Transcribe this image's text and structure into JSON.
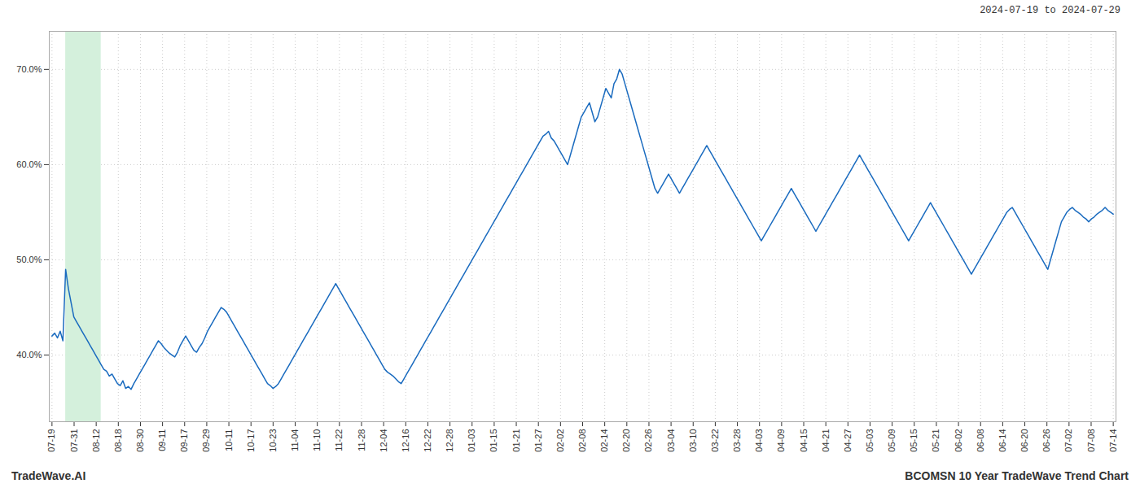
{
  "chart_data": {
    "type": "line",
    "title": "2024-07-19 to 2024-07-29",
    "footer": [
      "TradeWave.AI",
      "BCOMSN 10 Year TradeWave Trend Chart"
    ],
    "color": "#1a6bbf",
    "grid": true,
    "highlight": {
      "start": 5,
      "end": 18,
      "color": "#d4f0dc"
    },
    "xlim": [
      -1,
      390
    ],
    "xticks": [
      {
        "value": 0,
        "label": "07-19"
      },
      {
        "value": 8.104167,
        "label": "07-31"
      },
      {
        "value": 16.208333,
        "label": "08-12"
      },
      {
        "value": 24.3125,
        "label": "08-18"
      },
      {
        "value": 32.416667,
        "label": "08-30"
      },
      {
        "value": 40.520833,
        "label": "09-11"
      },
      {
        "value": 48.625,
        "label": "09-17"
      },
      {
        "value": 56.729167,
        "label": "09-29"
      },
      {
        "value": 64.833333,
        "label": "10-11"
      },
      {
        "value": 72.9375,
        "label": "10-17"
      },
      {
        "value": 81.041667,
        "label": "10-23"
      },
      {
        "value": 89.145833,
        "label": "11-04"
      },
      {
        "value": 97.25,
        "label": "11-10"
      },
      {
        "value": 105.354167,
        "label": "11-22"
      },
      {
        "value": 113.458333,
        "label": "11-28"
      },
      {
        "value": 121.5625,
        "label": "12-04"
      },
      {
        "value": 129.666667,
        "label": "12-16"
      },
      {
        "value": 137.770833,
        "label": "12-22"
      },
      {
        "value": 145.875,
        "label": "12-28"
      },
      {
        "value": 153.979167,
        "label": "01-03"
      },
      {
        "value": 162.083333,
        "label": "01-15"
      },
      {
        "value": 170.1875,
        "label": "01-21"
      },
      {
        "value": 178.291667,
        "label": "01-27"
      },
      {
        "value": 186.395833,
        "label": "02-02"
      },
      {
        "value": 194.5,
        "label": "02-08"
      },
      {
        "value": 202.604167,
        "label": "02-14"
      },
      {
        "value": 210.708333,
        "label": "02-20"
      },
      {
        "value": 218.8125,
        "label": "02-26"
      },
      {
        "value": 226.916667,
        "label": "03-04"
      },
      {
        "value": 235.020833,
        "label": "03-10"
      },
      {
        "value": 243.125,
        "label": "03-22"
      },
      {
        "value": 251.229167,
        "label": "03-28"
      },
      {
        "value": 259.333333,
        "label": "04-03"
      },
      {
        "value": 267.4375,
        "label": "04-09"
      },
      {
        "value": 275.541667,
        "label": "04-15"
      },
      {
        "value": 283.645833,
        "label": "04-21"
      },
      {
        "value": 291.75,
        "label": "04-27"
      },
      {
        "value": 299.854167,
        "label": "05-03"
      },
      {
        "value": 307.958333,
        "label": "05-09"
      },
      {
        "value": 316.0625,
        "label": "05-15"
      },
      {
        "value": 324.166667,
        "label": "05-21"
      },
      {
        "value": 332.270833,
        "label": "06-02"
      },
      {
        "value": 340.375,
        "label": "06-08"
      },
      {
        "value": 348.479167,
        "label": "06-14"
      },
      {
        "value": 356.583333,
        "label": "06-20"
      },
      {
        "value": 364.6875,
        "label": "06-26"
      },
      {
        "value": 372.791667,
        "label": "07-02"
      },
      {
        "value": 380.895833,
        "label": "07-08"
      },
      {
        "value": 389,
        "label": "07-14"
      }
    ],
    "ylim": [
      33,
      74
    ],
    "yticks": [
      {
        "value": 40.0,
        "label": "40.0%"
      },
      {
        "value": 50.0,
        "label": "50.0%"
      },
      {
        "value": 60.0,
        "label": "60.0%"
      },
      {
        "value": 70.0,
        "label": "70.0%"
      }
    ],
    "x": [
      0,
      1,
      2,
      3,
      4,
      5,
      6,
      7,
      8,
      9,
      10,
      11,
      12,
      13,
      14,
      15,
      16,
      17,
      18,
      19,
      20,
      21,
      22,
      23,
      24,
      25,
      26,
      27,
      28,
      29,
      30,
      31,
      32,
      33,
      34,
      35,
      36,
      37,
      38,
      39,
      40,
      41,
      42,
      43,
      44,
      45,
      46,
      47,
      48,
      49,
      50,
      51,
      52,
      53,
      54,
      55,
      56,
      57,
      58,
      59,
      60,
      61,
      62,
      63,
      64,
      65,
      66,
      67,
      68,
      69,
      70,
      71,
      72,
      73,
      74,
      75,
      76,
      77,
      78,
      79,
      80,
      81,
      82,
      83,
      84,
      85,
      86,
      87,
      88,
      89,
      90,
      91,
      92,
      93,
      94,
      95,
      96,
      97,
      98,
      99,
      100,
      101,
      102,
      103,
      104,
      105,
      106,
      107,
      108,
      109,
      110,
      111,
      112,
      113,
      114,
      115,
      116,
      117,
      118,
      119,
      120,
      121,
      122,
      123,
      124,
      125,
      126,
      127,
      128,
      129,
      130,
      131,
      132,
      133,
      134,
      135,
      136,
      137,
      138,
      139,
      140,
      141,
      142,
      143,
      144,
      145,
      146,
      147,
      148,
      149,
      150,
      151,
      152,
      153,
      154,
      155,
      156,
      157,
      158,
      159,
      160,
      161,
      162,
      163,
      164,
      165,
      166,
      167,
      168,
      169,
      170,
      171,
      172,
      173,
      174,
      175,
      176,
      177,
      178,
      179,
      180,
      181,
      182,
      183,
      184,
      185,
      186,
      187,
      188,
      189,
      190,
      191,
      192,
      193,
      194,
      195,
      196,
      197,
      198,
      199,
      200,
      201,
      202,
      203,
      204,
      205,
      206,
      207,
      208,
      209,
      210,
      211,
      212,
      213,
      214,
      215,
      216,
      217,
      218,
      219,
      220,
      221,
      222,
      223,
      224,
      225,
      226,
      227,
      228,
      229,
      230,
      231,
      232,
      233,
      234,
      235,
      236,
      237,
      238,
      239,
      240,
      241,
      242,
      243,
      244,
      245,
      246,
      247,
      248,
      249,
      250,
      251,
      252,
      253,
      254,
      255,
      256,
      257,
      258,
      259,
      260,
      261,
      262,
      263,
      264,
      265,
      266,
      267,
      268,
      269,
      270,
      271,
      272,
      273,
      274,
      275,
      276,
      277,
      278,
      279,
      280,
      281,
      282,
      283,
      284,
      285,
      286,
      287,
      288,
      289,
      290,
      291,
      292,
      293,
      294,
      295,
      296,
      297,
      298,
      299,
      300,
      301,
      302,
      303,
      304,
      305,
      306,
      307,
      308,
      309,
      310,
      311,
      312,
      313,
      314,
      315,
      316,
      317,
      318,
      319,
      320,
      321,
      322,
      323,
      324,
      325,
      326,
      327,
      328,
      329,
      330,
      331,
      332,
      333,
      334,
      335,
      336,
      337,
      338,
      339,
      340,
      341,
      342,
      343,
      344,
      345,
      346,
      347,
      348,
      349,
      350,
      351,
      352,
      353,
      354,
      355,
      356,
      357,
      358,
      359,
      360,
      361,
      362,
      363,
      364,
      365,
      366,
      367,
      368,
      369,
      370,
      371,
      372,
      373,
      374,
      375,
      376,
      377,
      378,
      379,
      380,
      381,
      382,
      383,
      384,
      385,
      386,
      387,
      388,
      389
    ],
    "values": [
      42.0,
      42.3,
      41.8,
      42.5,
      41.5,
      49.0,
      47.0,
      45.5,
      44.0,
      43.5,
      43.0,
      42.5,
      42.0,
      41.5,
      41.0,
      40.5,
      40.0,
      39.5,
      39.0,
      38.5,
      38.3,
      37.8,
      38.0,
      37.5,
      37.0,
      36.8,
      37.3,
      36.5,
      36.7,
      36.4,
      37.0,
      37.5,
      38.0,
      38.5,
      39.0,
      39.5,
      40.0,
      40.5,
      41.0,
      41.5,
      41.2,
      40.8,
      40.5,
      40.2,
      40.0,
      39.8,
      40.3,
      41.0,
      41.5,
      42.0,
      41.5,
      41.0,
      40.5,
      40.3,
      40.8,
      41.2,
      41.8,
      42.5,
      43.0,
      43.5,
      44.0,
      44.5,
      45.0,
      44.8,
      44.5,
      44.0,
      43.5,
      43.0,
      42.5,
      42.0,
      41.5,
      41.0,
      40.5,
      40.0,
      39.5,
      39.0,
      38.5,
      38.0,
      37.5,
      37.0,
      36.8,
      36.5,
      36.7,
      37.0,
      37.5,
      38.0,
      38.5,
      39.0,
      39.5,
      40.0,
      40.5,
      41.0,
      41.5,
      42.0,
      42.5,
      43.0,
      43.5,
      44.0,
      44.5,
      45.0,
      45.5,
      46.0,
      46.5,
      47.0,
      47.5,
      47.0,
      46.5,
      46.0,
      45.5,
      45.0,
      44.5,
      44.0,
      43.5,
      43.0,
      42.5,
      42.0,
      41.5,
      41.0,
      40.5,
      40.0,
      39.5,
      39.0,
      38.5,
      38.2,
      38.0,
      37.8,
      37.5,
      37.2,
      37.0,
      37.5,
      38.0,
      38.5,
      39.0,
      39.5,
      40.0,
      40.5,
      41.0,
      41.5,
      42.0,
      42.5,
      43.0,
      43.5,
      44.0,
      44.5,
      45.0,
      45.5,
      46.0,
      46.5,
      47.0,
      47.5,
      48.0,
      48.5,
      49.0,
      49.5,
      50.0,
      50.5,
      51.0,
      51.5,
      52.0,
      52.5,
      53.0,
      53.5,
      54.0,
      54.5,
      55.0,
      55.5,
      56.0,
      56.5,
      57.0,
      57.5,
      58.0,
      58.5,
      59.0,
      59.5,
      60.0,
      60.5,
      61.0,
      61.5,
      62.0,
      62.5,
      63.0,
      63.2,
      63.5,
      62.8,
      62.5,
      62.0,
      61.5,
      61.0,
      60.5,
      60.0,
      61.0,
      62.0,
      63.0,
      64.0,
      65.0,
      65.5,
      66.0,
      66.5,
      65.5,
      64.5,
      65.0,
      66.0,
      67.0,
      68.0,
      67.5,
      67.0,
      68.5,
      69.0,
      70.0,
      69.5,
      68.5,
      67.5,
      66.5,
      65.5,
      64.5,
      63.5,
      62.5,
      61.5,
      60.5,
      59.5,
      58.5,
      57.5,
      57.0,
      57.5,
      58.0,
      58.5,
      59.0,
      58.5,
      58.0,
      57.5,
      57.0,
      57.5,
      58.0,
      58.5,
      59.0,
      59.5,
      60.0,
      60.5,
      61.0,
      61.5,
      62.0,
      61.5,
      61.0,
      60.5,
      60.0,
      59.5,
      59.0,
      58.5,
      58.0,
      57.5,
      57.0,
      56.5,
      56.0,
      55.5,
      55.0,
      54.5,
      54.0,
      53.5,
      53.0,
      52.5,
      52.0,
      52.5,
      53.0,
      53.5,
      54.0,
      54.5,
      55.0,
      55.5,
      56.0,
      56.5,
      57.0,
      57.5,
      57.0,
      56.5,
      56.0,
      55.5,
      55.0,
      54.5,
      54.0,
      53.5,
      53.0,
      53.5,
      54.0,
      54.5,
      55.0,
      55.5,
      56.0,
      56.5,
      57.0,
      57.5,
      58.0,
      58.5,
      59.0,
      59.5,
      60.0,
      60.5,
      61.0,
      60.5,
      60.0,
      59.5,
      59.0,
      58.5,
      58.0,
      57.5,
      57.0,
      56.5,
      56.0,
      55.5,
      55.0,
      54.5,
      54.0,
      53.5,
      53.0,
      52.5,
      52.0,
      52.5,
      53.0,
      53.5,
      54.0,
      54.5,
      55.0,
      55.5,
      56.0,
      55.5,
      55.0,
      54.5,
      54.0,
      53.5,
      53.0,
      52.5,
      52.0,
      51.5,
      51.0,
      50.5,
      50.0,
      49.5,
      49.0,
      48.5,
      49.0,
      49.5,
      50.0,
      50.5,
      51.0,
      51.5,
      52.0,
      52.5,
      53.0,
      53.5,
      54.0,
      54.5,
      55.0,
      55.3,
      55.5,
      55.0,
      54.5,
      54.0,
      53.5,
      53.0,
      52.5,
      52.0,
      51.5,
      51.0,
      50.5,
      50.0,
      49.5,
      49.0,
      50.0,
      51.0,
      52.0,
      53.0,
      54.0,
      54.5,
      55.0,
      55.3,
      55.5,
      55.2,
      55.0,
      54.8,
      54.5,
      54.3,
      54.0,
      54.3,
      54.5,
      54.8,
      55.0,
      55.2,
      55.5,
      55.2,
      55.0,
      54.8
    ]
  }
}
